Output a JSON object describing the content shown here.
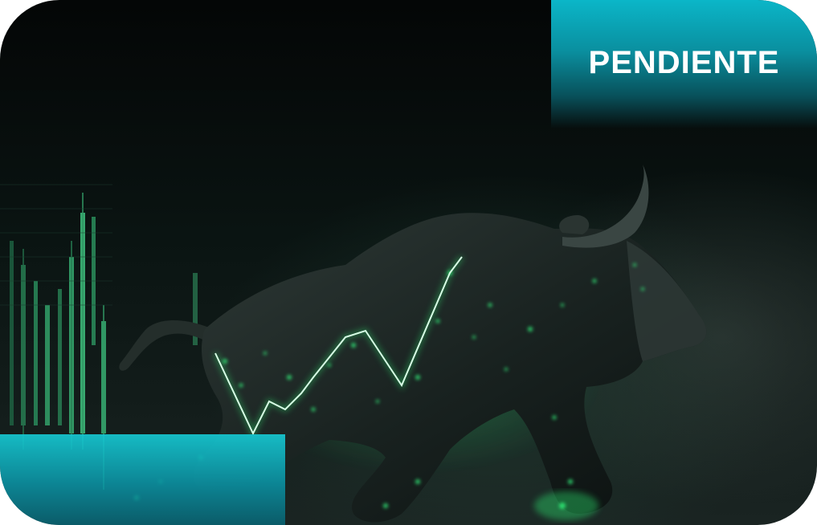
{
  "badge": {
    "label": "PENDIENTE"
  },
  "hero": {
    "subject": "bull-illustration",
    "accent_colors": [
      "#19e86a",
      "#0bb6c8"
    ]
  }
}
